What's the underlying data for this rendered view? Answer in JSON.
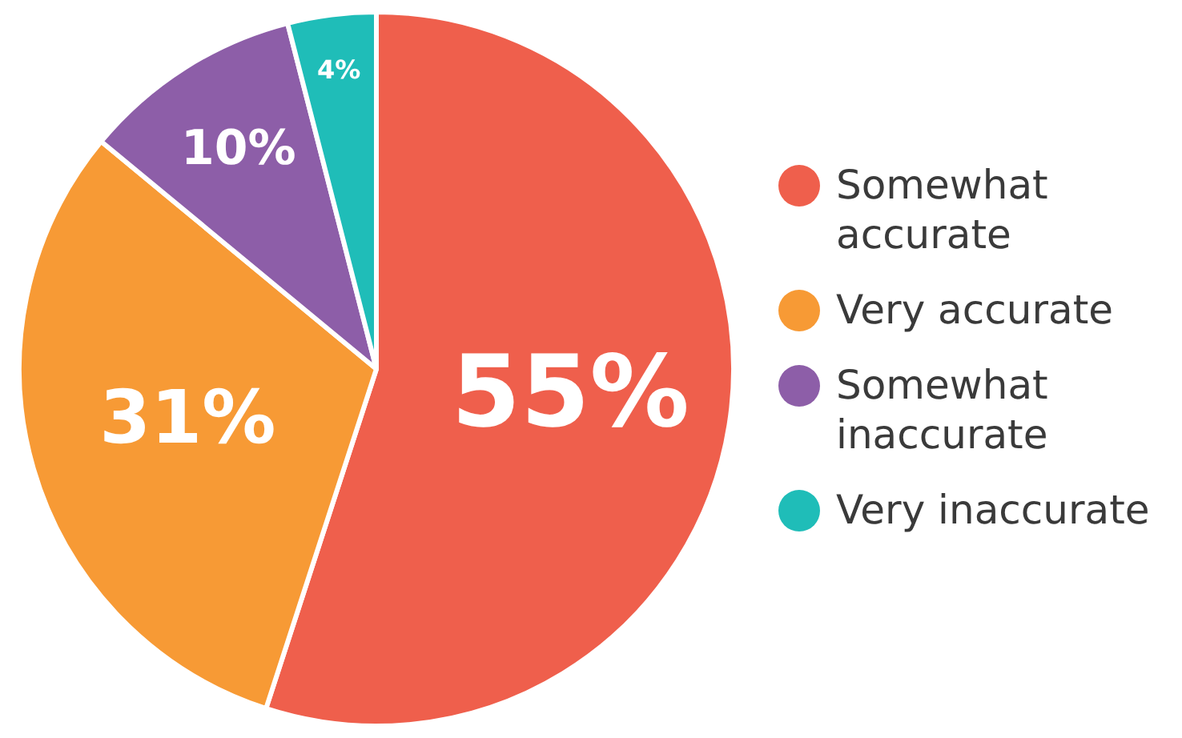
{
  "chart_data": {
    "type": "pie",
    "categories": [
      "Somewhat accurate",
      "Very accurate",
      "Somewhat inaccurate",
      "Very inaccurate"
    ],
    "values": [
      55,
      31,
      10,
      4
    ],
    "colors": [
      "#ef5f4c",
      "#f79a35",
      "#8d5ea8",
      "#1fbdb8"
    ],
    "value_labels": [
      "55%",
      "31%",
      "10%",
      "4%"
    ],
    "legend": "right"
  }
}
